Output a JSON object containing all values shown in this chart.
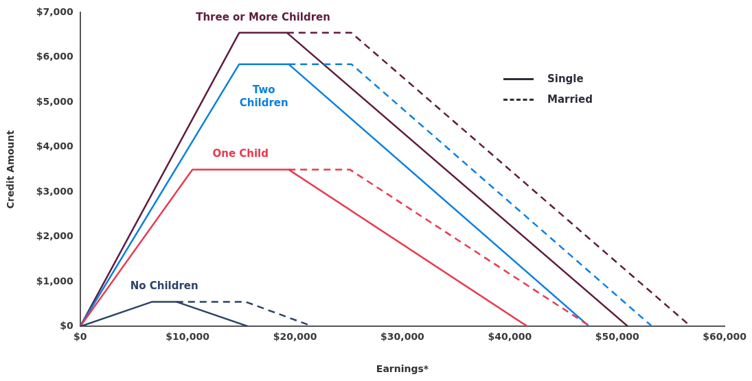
{
  "chart_data": {
    "type": "line",
    "xlabel": "Earnings*",
    "ylabel": "Credit Amount",
    "xlim": [
      0,
      60000
    ],
    "ylim": [
      0,
      7000
    ],
    "xticks": [
      {
        "value": 0,
        "label": "$0"
      },
      {
        "value": 10000,
        "label": "$10,000"
      },
      {
        "value": 20000,
        "label": "$20,000"
      },
      {
        "value": 30000,
        "label": "$30,000"
      },
      {
        "value": 40000,
        "label": "$40,000"
      },
      {
        "value": 50000,
        "label": "$50,000"
      },
      {
        "value": 60000,
        "label": "$60,000"
      }
    ],
    "yticks": [
      {
        "value": 0,
        "label": "$0"
      },
      {
        "value": 1000,
        "label": "$1,000"
      },
      {
        "value": 2000,
        "label": "$2,000"
      },
      {
        "value": 3000,
        "label": "$3,000"
      },
      {
        "value": 4000,
        "label": "$4,000"
      },
      {
        "value": 5000,
        "label": "$5,000"
      },
      {
        "value": 6000,
        "label": "$6,000"
      },
      {
        "value": 7000,
        "label": "$7,000"
      }
    ],
    "grid": false,
    "marker": "none",
    "series": [
      {
        "color": "#2b4366",
        "line_style": "dashed",
        "x": [
          8950,
          15400,
          21650
        ],
        "values": [
          550,
          550,
          0
        ]
      },
      {
        "name": "No Children",
        "color": "#2b4366",
        "line_style": "solid",
        "x": [
          0,
          6700,
          8950,
          15650
        ],
        "values": [
          0,
          550,
          550,
          0
        ]
      },
      {
        "color": "#e8394f",
        "line_style": "dashed",
        "x": [
          19400,
          25100,
          47500
        ],
        "values": [
          3500,
          3500,
          0
        ]
      },
      {
        "name": "One Child",
        "color": "#e8394f",
        "line_style": "solid",
        "x": [
          0,
          10450,
          19400,
          41650
        ],
        "values": [
          0,
          3500,
          3500,
          0
        ]
      },
      {
        "color": "#0a80e0",
        "line_style": "dashed",
        "x": [
          19400,
          25250,
          53250
        ],
        "values": [
          5850,
          5850,
          0
        ]
      },
      {
        "name": "Two Children",
        "color": "#0a80e0",
        "line_style": "solid",
        "x": [
          0,
          14800,
          19400,
          47400
        ],
        "values": [
          0,
          5850,
          5850,
          0
        ]
      },
      {
        "color": "#5e1c3e",
        "line_style": "dashed",
        "x": [
          19250,
          25250,
          56850
        ],
        "values": [
          6550,
          6550,
          0
        ]
      },
      {
        "name": "Three or More Children",
        "color": "#5e1c3e",
        "line_style": "solid",
        "x": [
          0,
          14800,
          19250,
          51000
        ],
        "values": [
          0,
          6550,
          6550,
          0
        ]
      }
    ],
    "annotations": [
      "Single",
      "Married"
    ]
  }
}
